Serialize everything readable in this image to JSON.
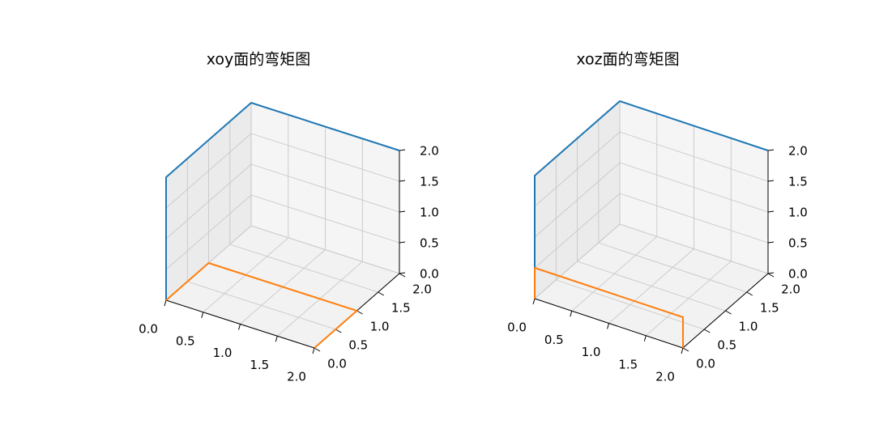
{
  "chart_data": [
    {
      "type": "line3d",
      "title": "xoy面的弯矩图",
      "xlim": [
        0,
        2
      ],
      "ylim": [
        0,
        2
      ],
      "zlim": [
        0,
        2
      ],
      "xticks": [
        "0.0",
        "0.5",
        "1.0",
        "1.5",
        "2.0"
      ],
      "yticks": [
        "0.0",
        "0.5",
        "1.0",
        "1.5",
        "2.0"
      ],
      "zticks": [
        "0.0",
        "0.5",
        "1.0",
        "1.5",
        "2.0"
      ],
      "grid": true,
      "series": [
        {
          "color": "#1f77b4",
          "points": [
            [
              0,
              0,
              0
            ],
            [
              0,
              0,
              2
            ],
            [
              0,
              2,
              2
            ],
            [
              2,
              2,
              2
            ]
          ]
        },
        {
          "color": "#ff7f0e",
          "points": [
            [
              0,
              0,
              0
            ],
            [
              0,
              1,
              0
            ],
            [
              2,
              1,
              0
            ],
            [
              2,
              0,
              0
            ]
          ]
        }
      ]
    },
    {
      "type": "line3d",
      "title": "xoz面的弯矩图",
      "xlim": [
        0,
        2
      ],
      "ylim": [
        0,
        2
      ],
      "zlim": [
        0,
        2
      ],
      "xticks": [
        "0.0",
        "0.5",
        "1.0",
        "1.5",
        "2.0"
      ],
      "yticks": [
        "0.0",
        "0.5",
        "1.0",
        "1.5",
        "2.0"
      ],
      "zticks": [
        "0.0",
        "0.5",
        "1.0",
        "1.5",
        "2.0"
      ],
      "grid": true,
      "series": [
        {
          "color": "#1f77b4",
          "points": [
            [
              0,
              0,
              0
            ],
            [
              0,
              0,
              2
            ],
            [
              0,
              2,
              2
            ],
            [
              2,
              2,
              2
            ]
          ]
        },
        {
          "color": "#ff7f0e",
          "points": [
            [
              0,
              0,
              0
            ],
            [
              0,
              0,
              0.5
            ],
            [
              2,
              0,
              0.5
            ],
            [
              2,
              0,
              0
            ]
          ]
        }
      ]
    }
  ]
}
